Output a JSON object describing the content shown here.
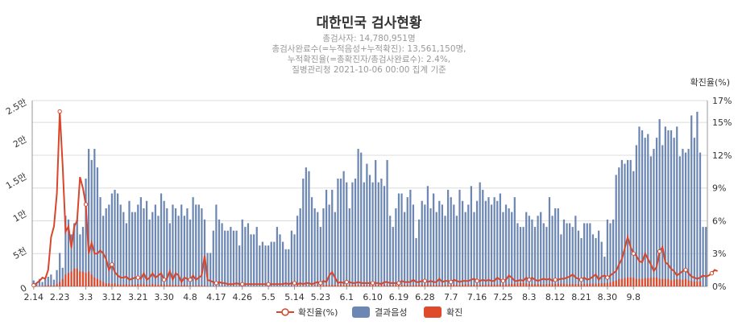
{
  "title": "대한민국 검사현황",
  "subtitle_lines": [
    "총검사자: 14,780,951명",
    "총검사완료수(=누적음성+누적확진): 13,561,150명,",
    "누적확진율(=총확진자/총검사완료수): 2.4%,",
    "질병관리청 2021-10-06 00:00 집계 기준"
  ],
  "chart_data": {
    "type": "bar",
    "categories_labeled": [
      "2.14",
      "2.23",
      "3.3",
      "3.12",
      "3.21",
      "3.30",
      "4.8",
      "4.17",
      "4.26",
      "5.5",
      "5.14",
      "5.23",
      "6.1",
      "6.10",
      "6.19",
      "6.28",
      "7.7",
      "7.16",
      "7.25",
      "8.3",
      "8.12",
      "8.21",
      "8.30",
      "9.8"
    ],
    "label_step": 9,
    "left_axis": {
      "ticks": [
        "0",
        "5천",
        "1만",
        "1.5만",
        "2만",
        "2.5만"
      ],
      "min": 0,
      "max": 25000
    },
    "right_axis": {
      "title": "확진율(%)",
      "ticks": [
        "0%",
        "3%",
        "6%",
        "9%",
        "12%",
        "15%",
        "17%"
      ],
      "min": 0,
      "max": 17
    },
    "series": [
      {
        "name": "결과음성",
        "type": "bar",
        "color": "#6c87b3",
        "values": [
          800,
          500,
          1000,
          600,
          1000,
          1300,
          1600,
          900,
          2200,
          4500,
          2500,
          9500,
          9000,
          7000,
          8500,
          9000,
          7000,
          8000,
          14500,
          18500,
          17000,
          18500,
          16000,
          12000,
          9500,
          10500,
          11000,
          12500,
          13000,
          12500,
          11000,
          10000,
          8500,
          11500,
          10000,
          10000,
          11000,
          12000,
          10500,
          11500,
          9000,
          10000,
          11000,
          9500,
          12500,
          11500,
          10500,
          8500,
          11000,
          10500,
          9500,
          11000,
          9500,
          10500,
          9000,
          12000,
          11000,
          11000,
          10500,
          9000,
          4500,
          4500,
          7500,
          11000,
          9000,
          8500,
          7500,
          7500,
          8000,
          7500,
          7500,
          5500,
          9000,
          8000,
          8500,
          7000,
          7000,
          8000,
          5500,
          6000,
          5500,
          5500,
          6000,
          6000,
          8000,
          7000,
          6000,
          5000,
          5000,
          7500,
          7000,
          9500,
          10500,
          14500,
          16000,
          15500,
          12000,
          10500,
          10000,
          8000,
          10500,
          13000,
          11000,
          13000,
          10000,
          14500,
          14500,
          15500,
          14000,
          10500,
          14000,
          14500,
          18500,
          18000,
          14000,
          16500,
          15000,
          14000,
          17000,
          14000,
          14500,
          13500,
          17000,
          9500,
          8000,
          10500,
          12500,
          12500,
          10000,
          12000,
          13000,
          11000,
          6500,
          9000,
          11500,
          11000,
          13500,
          10500,
          12500,
          10000,
          11500,
          11000,
          9500,
          13000,
          12000,
          11000,
          9500,
          13000,
          11500,
          10000,
          11000,
          13500,
          10000,
          11500,
          14000,
          13000,
          11500,
          12000,
          11000,
          12000,
          11500,
          12500,
          10000,
          11000,
          10500,
          10000,
          12000,
          8500,
          8000,
          8000,
          10000,
          9500,
          9000,
          8000,
          9500,
          10000,
          8500,
          8000,
          12000,
          9500,
          10500,
          10500,
          7000,
          9000,
          8500,
          8500,
          8000,
          9500,
          7500,
          6500,
          8500,
          8500,
          8500,
          7000,
          6500,
          7500,
          6000,
          4000,
          9000,
          8500,
          9000,
          15000,
          16000,
          17000,
          16500,
          17000,
          17000,
          15500,
          19000,
          21500,
          21000,
          20000,
          20500,
          17500,
          18500,
          20000,
          22500,
          19000,
          21500,
          21000,
          21000,
          20000,
          21500,
          17500,
          18500,
          18000,
          18500,
          23000,
          20000,
          23500,
          18000,
          8000,
          8000
        ],
        "note": "values estimated from gridlines; tens of thousands scale"
      },
      {
        "name": "확진",
        "type": "bar",
        "color": "#e04a2a",
        "values": [
          20,
          20,
          10,
          10,
          30,
          40,
          30,
          30,
          80,
          150,
          250,
          400,
          450,
          500,
          600,
          600,
          500,
          500,
          450,
          500,
          400,
          300,
          250,
          200,
          150,
          100,
          100,
          80,
          100,
          70,
          60,
          60,
          80,
          60,
          50,
          60,
          80,
          70,
          90,
          60,
          60,
          80,
          60,
          50,
          70,
          60,
          40,
          60,
          50,
          50,
          40,
          40,
          50,
          30,
          30,
          20,
          20,
          40,
          30,
          20,
          15,
          10,
          10,
          10,
          10,
          10,
          10,
          10,
          10,
          10,
          10,
          10,
          5,
          10,
          5,
          5,
          5,
          5,
          5,
          5,
          5,
          5,
          5,
          5,
          5,
          5,
          5,
          5,
          10,
          15,
          20,
          30,
          20,
          15,
          20,
          20,
          20,
          30,
          40,
          30,
          40,
          50,
          40,
          50,
          40,
          50,
          50,
          40,
          40,
          40,
          40,
          50,
          40,
          40,
          40,
          40,
          40,
          40,
          40,
          40,
          40,
          50,
          40,
          40,
          40,
          40,
          50,
          40,
          50,
          50,
          40,
          40,
          50,
          50,
          60,
          50,
          60,
          50,
          40,
          50,
          40,
          40,
          50,
          40,
          40,
          60,
          50,
          50,
          60,
          70,
          60,
          50,
          60,
          60,
          50,
          50,
          60,
          60,
          70,
          60,
          60,
          70,
          60,
          60,
          80,
          80,
          90,
          100,
          110,
          120,
          100,
          80,
          80,
          80,
          80,
          70,
          70,
          80,
          80,
          90,
          80,
          90,
          90,
          90,
          80,
          80,
          80,
          80,
          80,
          80,
          80,
          90,
          90,
          90,
          90,
          100,
          100,
          110,
          120,
          140,
          170,
          200,
          250,
          250,
          280,
          300,
          300,
          300,
          250,
          250,
          250,
          280,
          280,
          300,
          300,
          300,
          250,
          250,
          250,
          250,
          200,
          230,
          240,
          240,
          220,
          250,
          200,
          180,
          160,
          170,
          170
        ]
      },
      {
        "name": "확진율(%)",
        "type": "line",
        "color": "#d8462b",
        "axis": "right",
        "marker_every": 9,
        "values": [
          0.1,
          0.3,
          0.5,
          0.8,
          0.7,
          1.5,
          4.5,
          5.5,
          8.5,
          16,
          11,
          5,
          5.5,
          3.5,
          5.5,
          6,
          10,
          9,
          7.5,
          3,
          4,
          3,
          3,
          3.3,
          3,
          2.5,
          1.5,
          2,
          1.3,
          1,
          0.8,
          0.8,
          0.9,
          0.6,
          0.7,
          0.8,
          0.8,
          0.7,
          1.2,
          0.6,
          0.8,
          1.2,
          0.8,
          1,
          1.2,
          0.6,
          0.7,
          1.4,
          0.6,
          1.2,
          1,
          0.4,
          0.8,
          0.7,
          0.6,
          1,
          0.6,
          0.8,
          1,
          2.8,
          0.6,
          0.5,
          0.4,
          0.3,
          0.4,
          0.3,
          0.3,
          0.2,
          0.2,
          0.2,
          0.3,
          0.2,
          0.2,
          0.2,
          0.2,
          0.2,
          0.2,
          0.2,
          0.2,
          0.2,
          0.2,
          0.2,
          0.2,
          0.2,
          0.2,
          0.2,
          0.2,
          0.3,
          0.2,
          0.3,
          0.3,
          0.2,
          0.3,
          0.2,
          0.3,
          0.3,
          0.2,
          0.3,
          0.4,
          0.3,
          0.5,
          0.4,
          1,
          1.3,
          0.8,
          0.3,
          0.4,
          0.3,
          0.4,
          0.4,
          0.3,
          0.3,
          0.4,
          0.3,
          0.3,
          0.3,
          0.3,
          0.3,
          0.3,
          0.3,
          0.2,
          0.4,
          0.4,
          0.3,
          0.3,
          0.3,
          0.3,
          0.5,
          0.4,
          0.4,
          0.4,
          0.6,
          0.4,
          0.4,
          0.5,
          0.5,
          0.4,
          0.5,
          0.4,
          0.4,
          0.7,
          0.4,
          0.5,
          0.5,
          0.4,
          0.6,
          0.5,
          0.4,
          0.5,
          0.5,
          0.5,
          0.6,
          0.7,
          0.5,
          0.5,
          0.6,
          0.5,
          0.6,
          0.5,
          0.5,
          0.8,
          0.6,
          0.5,
          0.6,
          1,
          0.8,
          0.5,
          0.5,
          0.6,
          0.5,
          0.8,
          0.6,
          0.8,
          0.6,
          0.5,
          0.6,
          0.7,
          0.6,
          0.7,
          0.5,
          0.6,
          0.6,
          0.7,
          0.7,
          0.8,
          0.9,
          1.1,
          0.8,
          0.7,
          0.6,
          0.8,
          0.6,
          0.7,
          0.9,
          1.1,
          0.6,
          0.9,
          1,
          0.8,
          1,
          1.2,
          1.4,
          2,
          2.5,
          3.5,
          4.5,
          3.6,
          3,
          2.8,
          2.3,
          2.2,
          3,
          2.5,
          2,
          1.4,
          1.8,
          3.2,
          3.6,
          2.2,
          2,
          1.6,
          1.4,
          1,
          1.2,
          1.4,
          1.5,
          1.2,
          0.9,
          0.8,
          0.7,
          0.8,
          1,
          0.9,
          1,
          1.2,
          1.5,
          1.4
        ]
      }
    ],
    "legend": [
      "확진율(%)",
      "결과음성",
      "확진"
    ],
    "legend_position": "bottom-center",
    "grid": true
  },
  "colors": {
    "negative": "#6c87b3",
    "positive": "#e04a2a",
    "rate": "#d8462b"
  }
}
